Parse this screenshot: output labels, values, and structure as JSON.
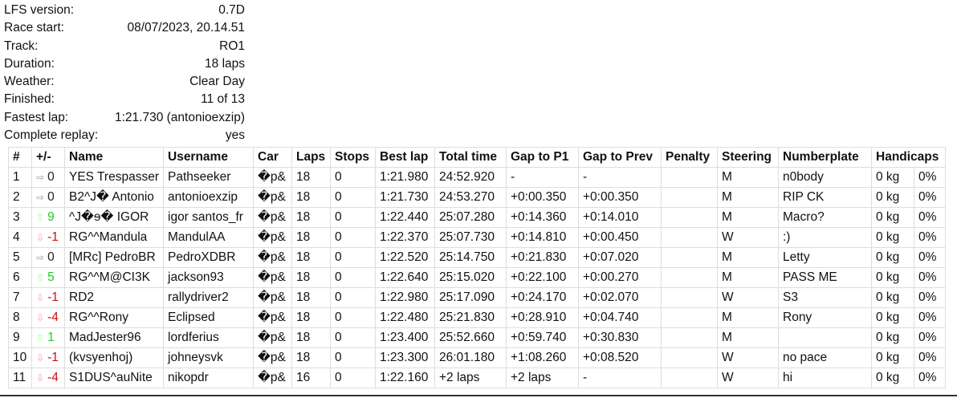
{
  "info": [
    {
      "label": "LFS version:",
      "value": "0.7D"
    },
    {
      "label": "Race start:",
      "value": "08/07/2023, 20.14.51"
    },
    {
      "label": "Track:",
      "value": "RO1"
    },
    {
      "label": "Duration:",
      "value": "18 laps"
    },
    {
      "label": "Weather:",
      "value": "Clear Day"
    },
    {
      "label": "Finished:",
      "value": "11 of 13"
    },
    {
      "label": "Fastest lap:",
      "value": "1:21.730 (antonioexzip)"
    },
    {
      "label": "Complete replay:",
      "value": "yes"
    }
  ],
  "headers": [
    "#",
    "+/-",
    "Name",
    "Username",
    "Car",
    "Laps",
    "Stops",
    "Best lap",
    "Total time",
    "Gap to P1",
    "Gap to Prev",
    "Penalty",
    "Steering",
    "Numberplate",
    "Handicaps"
  ],
  "colors": {
    "gain": "#22cc22",
    "loss": "#cc1111"
  },
  "rows": [
    {
      "pos": "1",
      "dir": "same",
      "arrow": "⇨",
      "change": "0",
      "name": "YES Trespasser",
      "user": "Pathseeker",
      "car": "�p&",
      "laps": "18",
      "stops": "0",
      "best": "1:21.980",
      "total": "24:52.920",
      "gap1": "-",
      "gapprev": "-",
      "penalty": "",
      "steer": "M",
      "plate": "n0body",
      "kg": "0 kg",
      "pct": "0%"
    },
    {
      "pos": "2",
      "dir": "same",
      "arrow": "⇨",
      "change": "0",
      "name": "B2^J� Antonio",
      "user": "antonioexzip",
      "car": "�p&",
      "laps": "18",
      "stops": "0",
      "best": "1:21.730",
      "total": "24:53.270",
      "gap1": "+0:00.350",
      "gapprev": "+0:00.350",
      "penalty": "",
      "steer": "M",
      "plate": "RIP CK",
      "kg": "0 kg",
      "pct": "0%"
    },
    {
      "pos": "3",
      "dir": "pos",
      "arrow": "⇧",
      "change": "9",
      "name": "^J�ɘ� IGOR",
      "user": "igor santos_fr",
      "car": "�p&",
      "laps": "18",
      "stops": "0",
      "best": "1:22.440",
      "total": "25:07.280",
      "gap1": "+0:14.360",
      "gapprev": "+0:14.010",
      "penalty": "",
      "steer": "M",
      "plate": "Macro?",
      "kg": "0 kg",
      "pct": "0%"
    },
    {
      "pos": "4",
      "dir": "neg",
      "arrow": "⇩",
      "change": "-1",
      "name": "RG^^Mandula",
      "user": "MandulAA",
      "car": "�p&",
      "laps": "18",
      "stops": "0",
      "best": "1:22.370",
      "total": "25:07.730",
      "gap1": "+0:14.810",
      "gapprev": "+0:00.450",
      "penalty": "",
      "steer": "W",
      "plate": ":)",
      "kg": "0 kg",
      "pct": "0%"
    },
    {
      "pos": "5",
      "dir": "same",
      "arrow": "⇨",
      "change": "0",
      "name": "[MRc] PedroBR",
      "user": "PedroXDBR",
      "car": "�p&",
      "laps": "18",
      "stops": "0",
      "best": "1:22.520",
      "total": "25:14.750",
      "gap1": "+0:21.830",
      "gapprev": "+0:07.020",
      "penalty": "",
      "steer": "M",
      "plate": "Letty",
      "kg": "0 kg",
      "pct": "0%"
    },
    {
      "pos": "6",
      "dir": "pos",
      "arrow": "⇧",
      "change": "5",
      "name": "RG^^M@CI3K",
      "user": "jackson93",
      "car": "�p&",
      "laps": "18",
      "stops": "0",
      "best": "1:22.640",
      "total": "25:15.020",
      "gap1": "+0:22.100",
      "gapprev": "+0:00.270",
      "penalty": "",
      "steer": "M",
      "plate": "PASS ME",
      "kg": "0 kg",
      "pct": "0%"
    },
    {
      "pos": "7",
      "dir": "neg",
      "arrow": "⇩",
      "change": "-1",
      "name": "RD2",
      "user": "rallydriver2",
      "car": "�p&",
      "laps": "18",
      "stops": "0",
      "best": "1:22.980",
      "total": "25:17.090",
      "gap1": "+0:24.170",
      "gapprev": "+0:02.070",
      "penalty": "",
      "steer": "W",
      "plate": "S3",
      "kg": "0 kg",
      "pct": "0%"
    },
    {
      "pos": "8",
      "dir": "neg",
      "arrow": "⇩",
      "change": "-4",
      "name": "RG^^Rony",
      "user": "Eclipsed",
      "car": "�p&",
      "laps": "18",
      "stops": "0",
      "best": "1:22.480",
      "total": "25:21.830",
      "gap1": "+0:28.910",
      "gapprev": "+0:04.740",
      "penalty": "",
      "steer": "M",
      "plate": "Rony",
      "kg": "0 kg",
      "pct": "0%"
    },
    {
      "pos": "9",
      "dir": "pos",
      "arrow": "⇧",
      "change": "1",
      "name": "MadJester96",
      "user": "lordferius",
      "car": "�p&",
      "laps": "18",
      "stops": "0",
      "best": "1:23.400",
      "total": "25:52.660",
      "gap1": "+0:59.740",
      "gapprev": "+0:30.830",
      "penalty": "",
      "steer": "M",
      "plate": "",
      "kg": "0 kg",
      "pct": "0%"
    },
    {
      "pos": "10",
      "dir": "neg",
      "arrow": "⇩",
      "change": "-1",
      "name": "(kvsyenhoj)",
      "user": "johneysvk",
      "car": "�p&",
      "laps": "18",
      "stops": "0",
      "best": "1:23.300",
      "total": "26:01.180",
      "gap1": "+1:08.260",
      "gapprev": "+0:08.520",
      "penalty": "",
      "steer": "W",
      "plate": "no pace",
      "kg": "0 kg",
      "pct": "0%"
    },
    {
      "pos": "11",
      "dir": "neg",
      "arrow": "⇩",
      "change": "-4",
      "name": "S1DUS^auNite",
      "user": "nikopdr",
      "car": "�p&",
      "laps": "16",
      "stops": "0",
      "best": "1:22.160",
      "total": "+2 laps",
      "gap1": "+2 laps",
      "gapprev": "-",
      "penalty": "",
      "steer": "W",
      "plate": "hi",
      "kg": "0 kg",
      "pct": "0%"
    }
  ]
}
